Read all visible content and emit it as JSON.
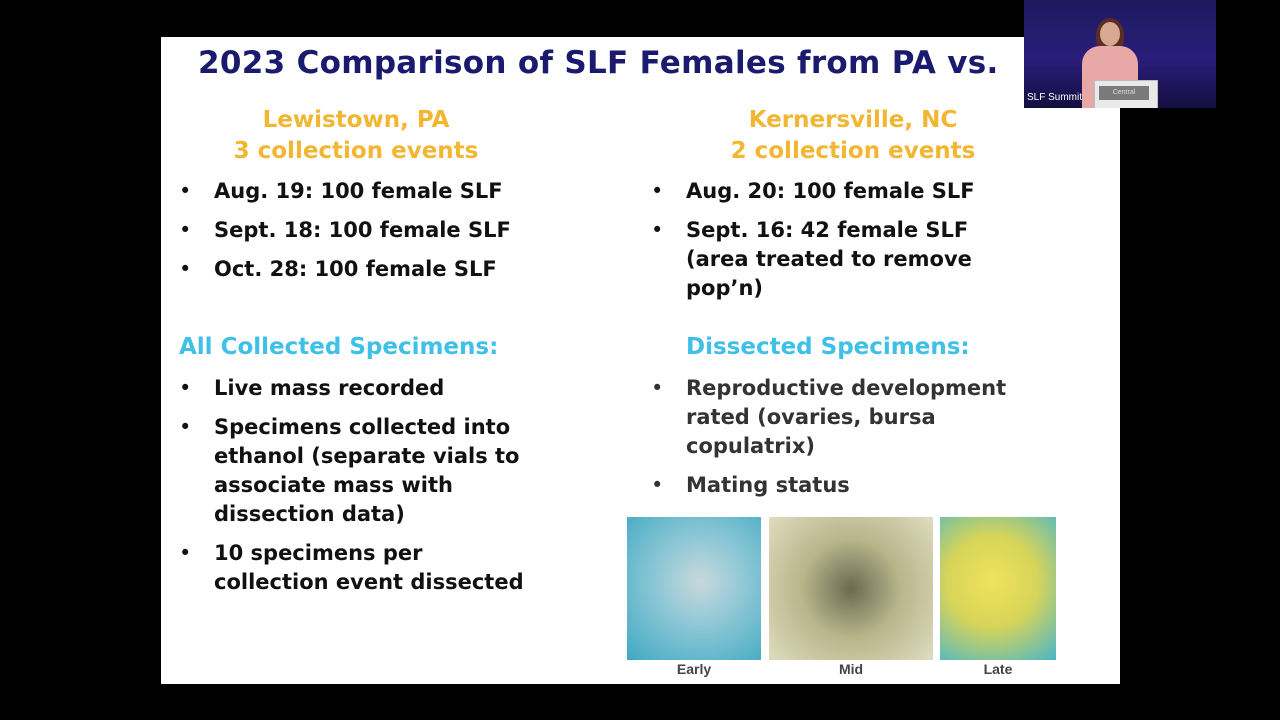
{
  "slide": {
    "title": "2023 Comparison of SLF Females from PA vs.",
    "left": {
      "heading_line1": "Lewistown, PA",
      "heading_line2": "3 collection events",
      "events": [
        "Aug. 19: 100 female SLF",
        "Sept. 18: 100 female SLF",
        "Oct. 28: 100 female SLF"
      ],
      "section_heading": "All Collected Specimens:",
      "section_items": [
        "Live mass recorded",
        "Specimens collected into ethanol (separate vials to associate mass with dissection data)",
        "10 specimens per collection event dissected"
      ]
    },
    "right": {
      "heading_line1": "Kernersville, NC",
      "heading_line2": "2 collection events",
      "events": [
        "Aug. 20: 100 female SLF",
        "Sept. 16: 42 female SLF (area treated to remove pop’n)"
      ],
      "section_heading": "Dissected Specimens:",
      "section_items": [
        "Reproductive development rated (ovaries, bursa copulatrix)",
        "Mating status"
      ],
      "photo_captions": [
        "Early",
        "Mid",
        "Late"
      ]
    }
  },
  "video": {
    "label": "SLF Summit",
    "podium_text": "Central"
  }
}
